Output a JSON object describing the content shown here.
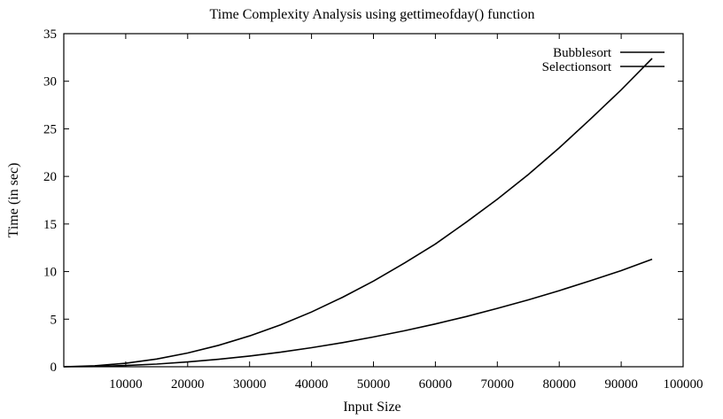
{
  "chart_data": {
    "type": "line",
    "title": "Time Complexity Analysis using  gettimeofday()  function",
    "xlabel": "Input Size",
    "ylabel": "Time (in sec)",
    "xlim": [
      0,
      100000
    ],
    "ylim": [
      0,
      35
    ],
    "xticks": [
      10000,
      20000,
      30000,
      40000,
      50000,
      60000,
      70000,
      80000,
      90000,
      100000
    ],
    "yticks": [
      0,
      5,
      10,
      15,
      20,
      25,
      30,
      35
    ],
    "grid": false,
    "legend_position": "top-right",
    "x": [
      0,
      5000,
      10000,
      15000,
      20000,
      25000,
      30000,
      35000,
      40000,
      45000,
      50000,
      55000,
      60000,
      65000,
      70000,
      75000,
      80000,
      85000,
      90000,
      95000
    ],
    "series": [
      {
        "name": "Bubblesort",
        "values": [
          0,
          0.1,
          0.36,
          0.81,
          1.44,
          2.25,
          3.24,
          4.4,
          5.75,
          7.3,
          9.0,
          10.9,
          12.9,
          15.2,
          17.6,
          20.2,
          23.0,
          26.0,
          29.1,
          32.4
        ]
      },
      {
        "name": "Selectionsort",
        "values": [
          0,
          0.03,
          0.13,
          0.28,
          0.5,
          0.78,
          1.13,
          1.53,
          2.0,
          2.53,
          3.13,
          3.78,
          4.5,
          5.28,
          6.13,
          7.03,
          8.0,
          9.03,
          10.1,
          11.3
        ]
      }
    ]
  }
}
